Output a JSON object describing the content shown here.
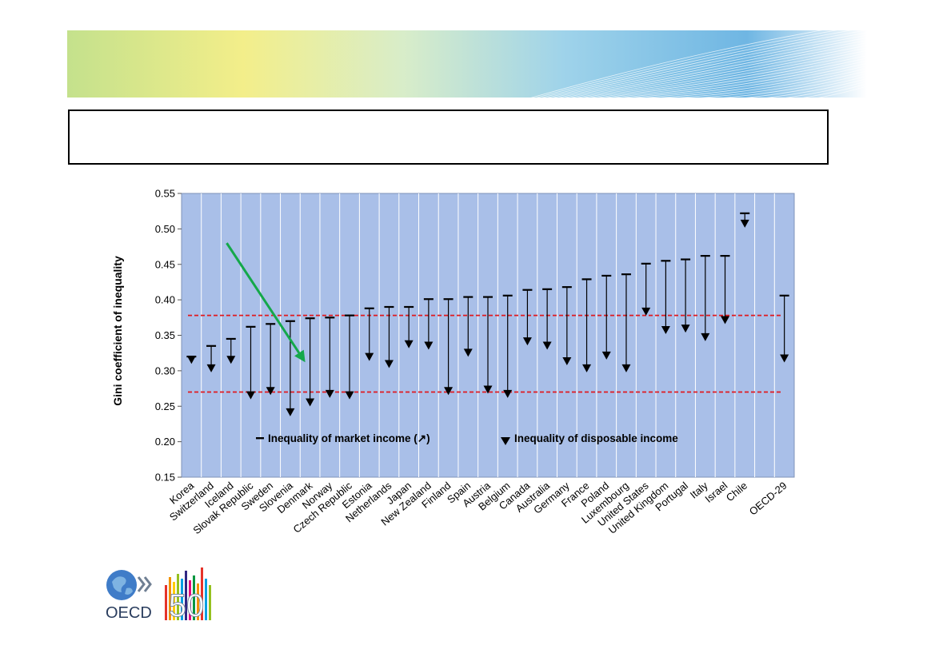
{
  "slide": {
    "title_box_text": ""
  },
  "logo": {
    "text": "OECD",
    "anniversary": "50"
  },
  "colors": {
    "plot_background": "#a9bfe8",
    "reference_line": "#e0191e",
    "arrow": "#14a84a",
    "marker": "#000000"
  },
  "chart_data": {
    "type": "range-arrow",
    "title": "",
    "xlabel": "",
    "ylabel": "Gini coefficient of inequality",
    "ylim": [
      0.15,
      0.55
    ],
    "yticks": [
      0.15,
      0.2,
      0.25,
      0.3,
      0.35,
      0.4,
      0.45,
      0.5,
      0.55
    ],
    "grid": "vertical",
    "legend_placement": "bottom-center",
    "legend": {
      "market": "Inequality of market income (↗)",
      "disposable": "Inequality of disposable  income"
    },
    "categories": [
      "Korea",
      "Switzerland",
      "Iceland",
      "Slovak Republic",
      "Sweden",
      "Slovenia",
      "Denmark",
      "Norway",
      "Czech Republic",
      "Estonia",
      "Netherlands",
      "Japan",
      "New Zealand",
      "Finland",
      "Spain",
      "Austria",
      "Belgium",
      "Canada",
      "Australia",
      "Germany",
      "France",
      "Poland",
      "Luxembourg",
      "United States",
      "United Kingdom",
      "Portugal",
      "Italy",
      "Israel",
      "Chile",
      "",
      "OECD-29"
    ],
    "series": [
      {
        "name": "Inequality of market income (↗)",
        "values": [
          0.32,
          0.335,
          0.345,
          0.362,
          0.366,
          0.37,
          0.374,
          0.375,
          0.378,
          0.388,
          0.39,
          0.39,
          0.401,
          0.401,
          0.404,
          0.404,
          0.406,
          0.414,
          0.415,
          0.418,
          0.429,
          0.434,
          0.436,
          0.451,
          0.455,
          0.457,
          0.462,
          0.462,
          0.522,
          null,
          0.406
        ]
      },
      {
        "name": "Inequality of disposable  income",
        "values": [
          0.312,
          0.3,
          0.312,
          0.262,
          0.268,
          0.238,
          0.252,
          0.264,
          0.262,
          0.316,
          0.306,
          0.334,
          0.332,
          0.268,
          0.322,
          0.27,
          0.264,
          0.338,
          0.332,
          0.31,
          0.3,
          0.318,
          0.3,
          0.38,
          0.354,
          0.356,
          0.344,
          0.368,
          0.504,
          null,
          0.314
        ]
      }
    ],
    "reference_lines": [
      0.378,
      0.27
    ],
    "annotations": [
      {
        "type": "arrow",
        "from": [
          "Slovak Republic",
          0.48
        ],
        "to": [
          "Denmark",
          0.312
        ]
      }
    ]
  }
}
